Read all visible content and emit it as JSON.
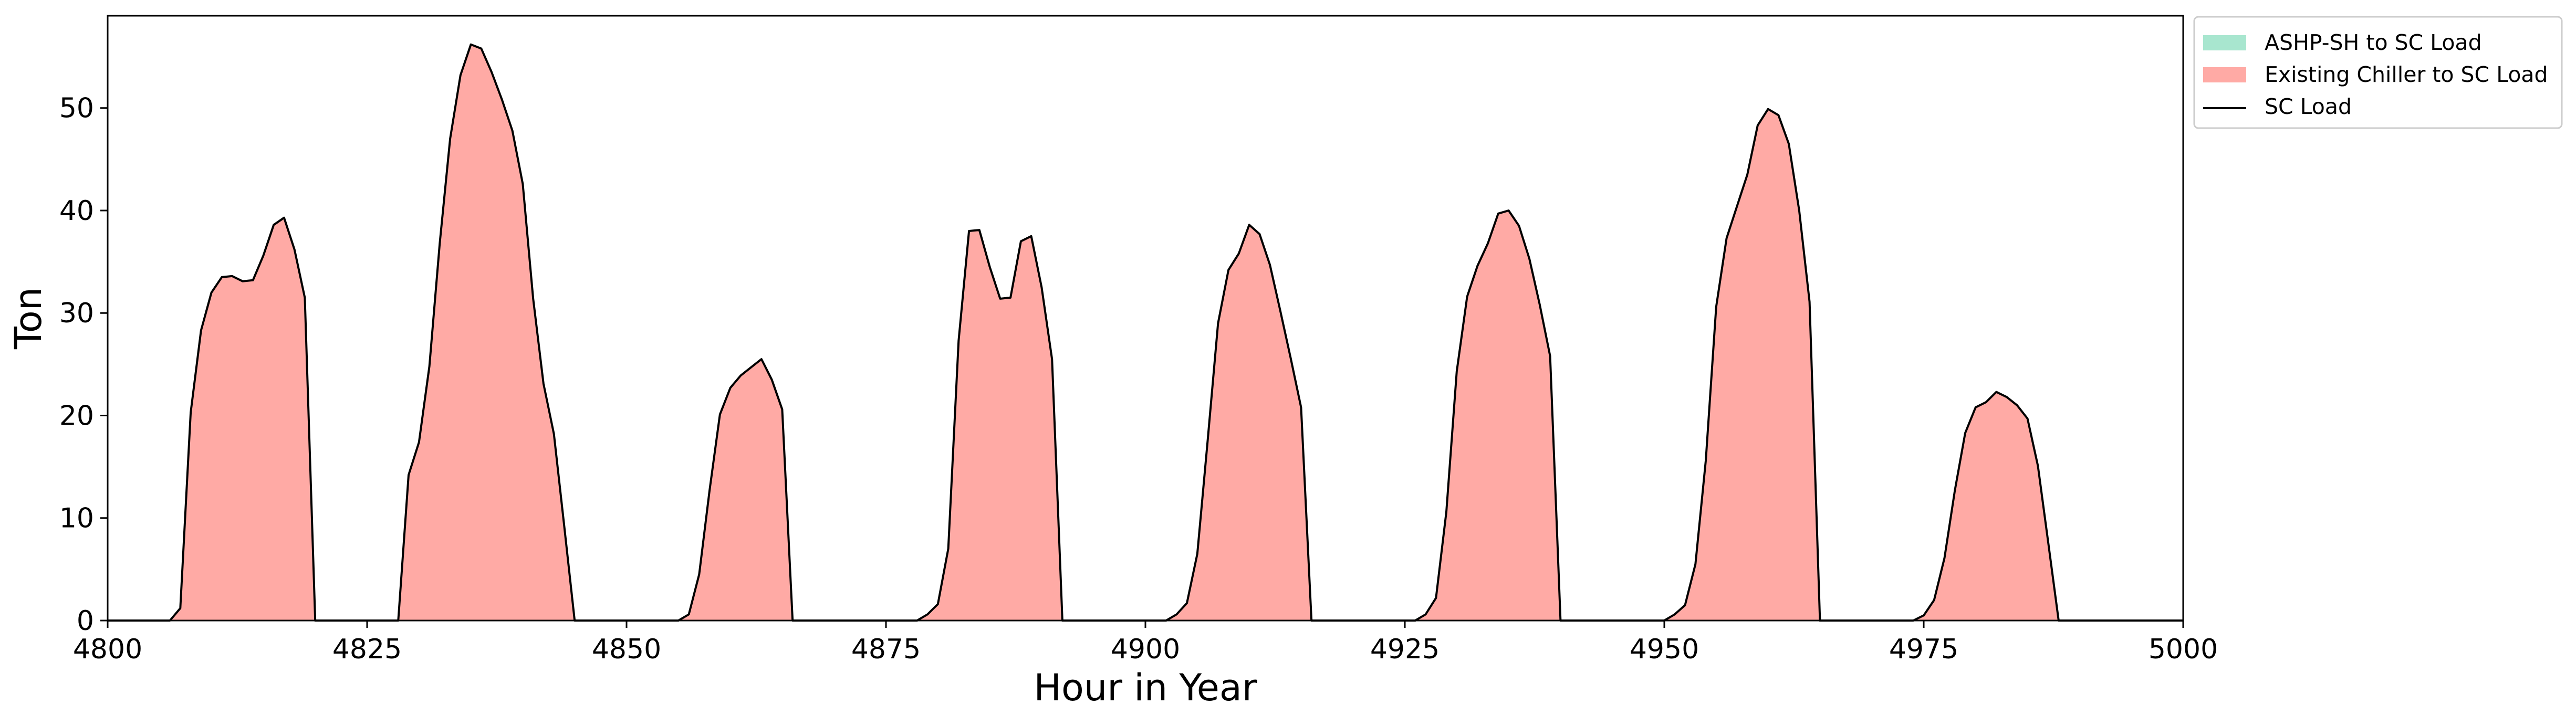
{
  "chart_data": {
    "type": "area",
    "title": "",
    "xlabel": "Hour in Year",
    "ylabel": "Ton",
    "xlim": [
      4800,
      5000
    ],
    "ylim": [
      0,
      59
    ],
    "xticks": [
      4800,
      4825,
      4850,
      4875,
      4900,
      4925,
      4950,
      4975,
      5000
    ],
    "yticks": [
      0,
      10,
      20,
      30,
      40,
      50
    ],
    "grid": false,
    "legend_position": "upper-right, outside plot",
    "series": [
      {
        "name": "ASHP-SH to SC Load",
        "kind": "stacked-area",
        "color": "#a8e6cf",
        "values": "all zero"
      },
      {
        "name": "Existing Chiller to SC Load",
        "kind": "stacked-area",
        "color": "#ffaaa5"
      },
      {
        "name": "SC Load",
        "kind": "line",
        "color": "#000000"
      }
    ],
    "points": [
      [
        4800,
        0
      ],
      [
        4806,
        0
      ],
      [
        4807,
        1.2
      ],
      [
        4808,
        20.3
      ],
      [
        4809,
        28.3
      ],
      [
        4810,
        32
      ],
      [
        4811,
        33.5
      ],
      [
        4812,
        33.6
      ],
      [
        4813,
        33.1
      ],
      [
        4814,
        33.2
      ],
      [
        4815,
        35.6
      ],
      [
        4816,
        38.6
      ],
      [
        4817,
        39.3
      ],
      [
        4818,
        36.2
      ],
      [
        4819,
        31.5
      ],
      [
        4820,
        0
      ],
      [
        4828,
        0
      ],
      [
        4829,
        14.2
      ],
      [
        4830,
        17.4
      ],
      [
        4831,
        24.8
      ],
      [
        4832,
        36.8
      ],
      [
        4833,
        47
      ],
      [
        4834,
        53.2
      ],
      [
        4835,
        56.2
      ],
      [
        4836,
        55.8
      ],
      [
        4837,
        53.5
      ],
      [
        4838,
        50.8
      ],
      [
        4839,
        47.8
      ],
      [
        4840,
        42.6
      ],
      [
        4841,
        31.4
      ],
      [
        4842,
        23.1
      ],
      [
        4843,
        18.2
      ],
      [
        4844,
        9.2
      ],
      [
        4845,
        0
      ],
      [
        4855,
        0
      ],
      [
        4856,
        0.6
      ],
      [
        4857,
        4.5
      ],
      [
        4858,
        12.7
      ],
      [
        4859,
        20.1
      ],
      [
        4860,
        22.7
      ],
      [
        4861,
        23.9
      ],
      [
        4862,
        24.7
      ],
      [
        4863,
        25.5
      ],
      [
        4864,
        23.5
      ],
      [
        4865,
        20.6
      ],
      [
        4866,
        0
      ],
      [
        4878,
        0
      ],
      [
        4879,
        0.6
      ],
      [
        4880,
        1.6
      ],
      [
        4881,
        7
      ],
      [
        4882,
        27.3
      ],
      [
        4883,
        38
      ],
      [
        4884,
        38.1
      ],
      [
        4885,
        34.5
      ],
      [
        4886,
        31.4
      ],
      [
        4887,
        31.5
      ],
      [
        4888,
        37
      ],
      [
        4889,
        37.5
      ],
      [
        4890,
        32.5
      ],
      [
        4891,
        25.5
      ],
      [
        4892,
        0
      ],
      [
        4902,
        0
      ],
      [
        4903,
        0.6
      ],
      [
        4904,
        1.7
      ],
      [
        4905,
        6.5
      ],
      [
        4906,
        17.6
      ],
      [
        4907,
        29
      ],
      [
        4908,
        34.2
      ],
      [
        4909,
        35.8
      ],
      [
        4910,
        38.6
      ],
      [
        4911,
        37.7
      ],
      [
        4912,
        34.7
      ],
      [
        4913,
        30.2
      ],
      [
        4914,
        25.6
      ],
      [
        4915,
        20.8
      ],
      [
        4916,
        0
      ],
      [
        4926,
        0
      ],
      [
        4927,
        0.6
      ],
      [
        4928,
        2.2
      ],
      [
        4929,
        10.6
      ],
      [
        4930,
        24.3
      ],
      [
        4931,
        31.6
      ],
      [
        4932,
        34.6
      ],
      [
        4933,
        36.8
      ],
      [
        4934,
        39.7
      ],
      [
        4935,
        40
      ],
      [
        4936,
        38.5
      ],
      [
        4937,
        35.3
      ],
      [
        4938,
        30.8
      ],
      [
        4939,
        25.8
      ],
      [
        4940,
        0
      ],
      [
        4950,
        0
      ],
      [
        4951,
        0.6
      ],
      [
        4952,
        1.5
      ],
      [
        4953,
        5.5
      ],
      [
        4954,
        15.6
      ],
      [
        4955,
        30.6
      ],
      [
        4956,
        37.3
      ],
      [
        4957,
        40.4
      ],
      [
        4958,
        43.5
      ],
      [
        4959,
        48.3
      ],
      [
        4960,
        49.9
      ],
      [
        4961,
        49.3
      ],
      [
        4962,
        46.5
      ],
      [
        4963,
        40
      ],
      [
        4964,
        31.1
      ],
      [
        4965,
        0
      ],
      [
        4974,
        0
      ],
      [
        4975,
        0.5
      ],
      [
        4976,
        2
      ],
      [
        4977,
        6.1
      ],
      [
        4978,
        12.7
      ],
      [
        4979,
        18.3
      ],
      [
        4980,
        20.8
      ],
      [
        4981,
        21.3
      ],
      [
        4982,
        22.3
      ],
      [
        4983,
        21.8
      ],
      [
        4984,
        21
      ],
      [
        4985,
        19.7
      ],
      [
        4986,
        15.1
      ],
      [
        4987,
        7.6
      ],
      [
        4988,
        0
      ],
      [
        5000,
        0
      ]
    ]
  }
}
